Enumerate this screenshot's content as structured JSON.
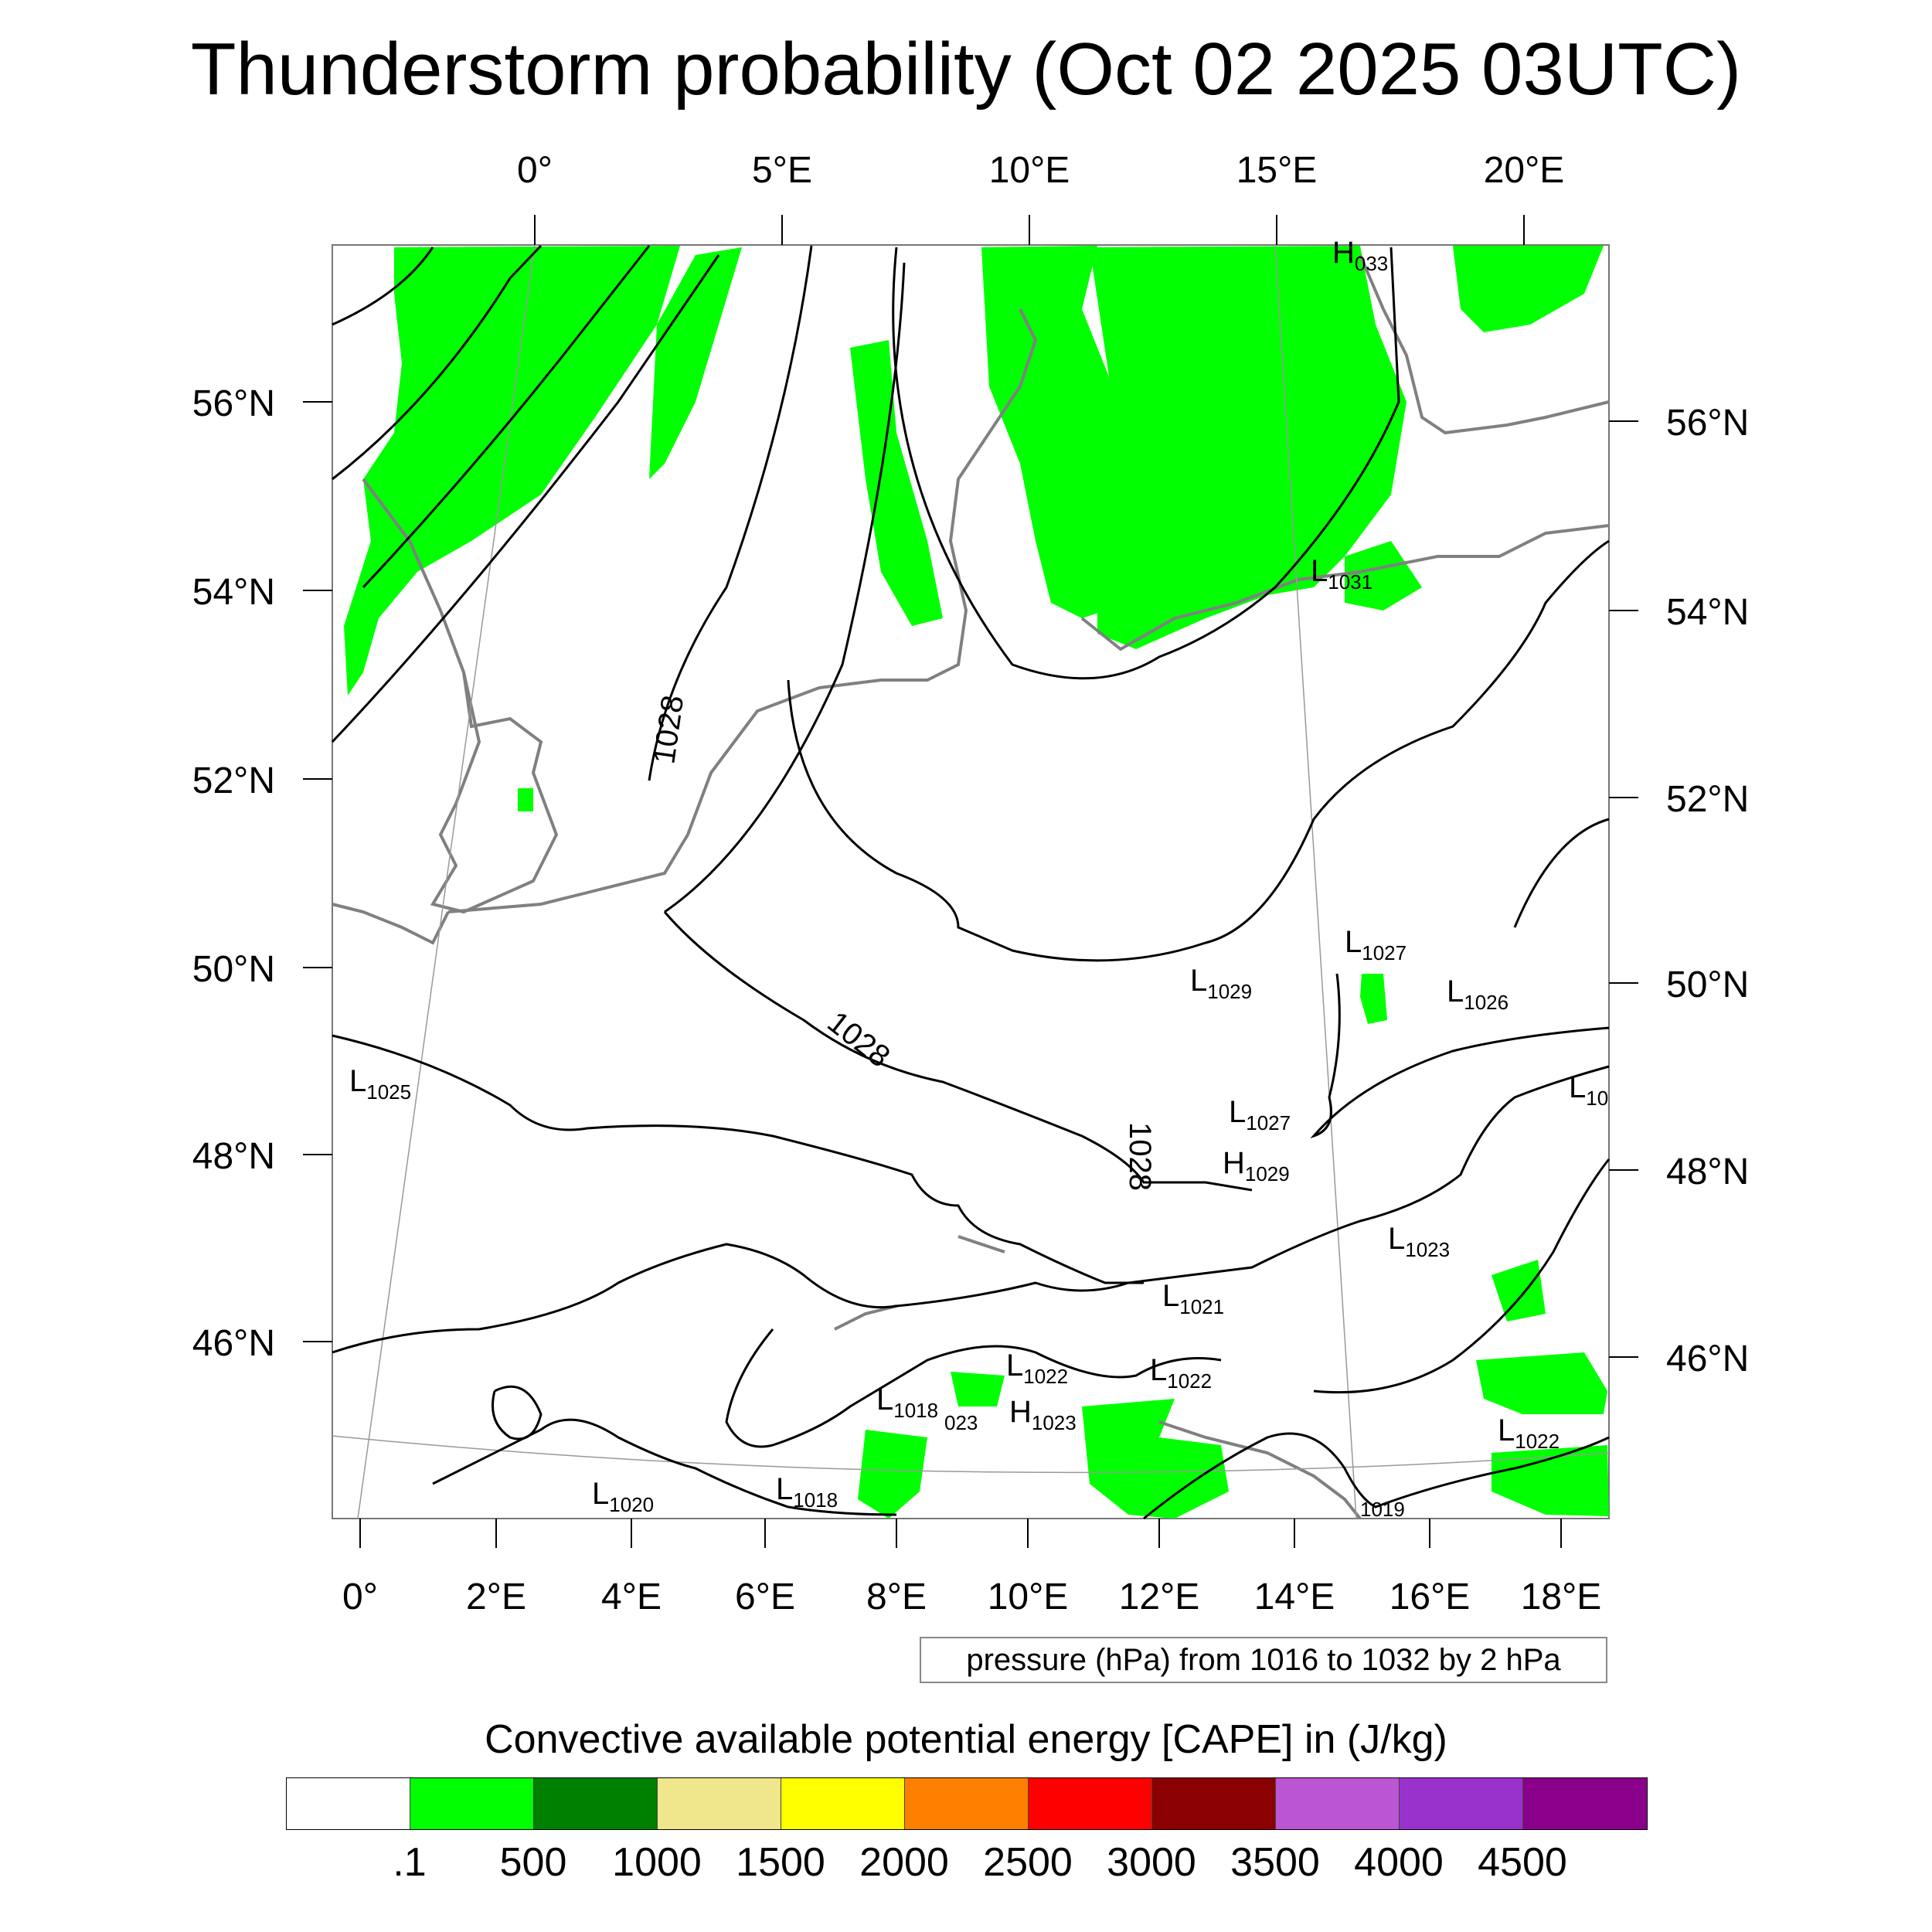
{
  "title": "Thunderstorm probability (Oct 02 2025 03UTC)",
  "top_lon_labels": [
    "0°",
    "5°E",
    "10°E",
    "15°E",
    "20°E"
  ],
  "bottom_lon_labels": [
    "0°",
    "2°E",
    "4°E",
    "6°E",
    "8°E",
    "10°E",
    "12°E",
    "14°E",
    "16°E",
    "18°E"
  ],
  "left_lat_labels": [
    "56°N",
    "54°N",
    "52°N",
    "50°N",
    "48°N",
    "46°N"
  ],
  "right_lat_labels": [
    "56°N",
    "54°N",
    "52°N",
    "50°N",
    "48°N",
    "46°N"
  ],
  "isobar_labels": [
    "1028",
    "1028",
    "1028"
  ],
  "pressure_centers": [
    {
      "type": "H",
      "value": "033"
    },
    {
      "type": "L",
      "value": "1031"
    },
    {
      "type": "L",
      "value": "1027"
    },
    {
      "type": "L",
      "value": "1029"
    },
    {
      "type": "L",
      "value": "1026"
    },
    {
      "type": "L",
      "value": "1025"
    },
    {
      "type": "L",
      "value": "10"
    },
    {
      "type": "L",
      "value": "1027"
    },
    {
      "type": "H",
      "value": "1029"
    },
    {
      "type": "L",
      "value": "1023"
    },
    {
      "type": "L",
      "value": "1021"
    },
    {
      "type": "L",
      "value": "1022"
    },
    {
      "type": "L",
      "value": "1022"
    },
    {
      "type": "L",
      "value": "1018"
    },
    {
      "type": "",
      "value": "023"
    },
    {
      "type": "H",
      "value": "1023"
    },
    {
      "type": "L",
      "value": "1022"
    },
    {
      "type": "L",
      "value": "1020"
    },
    {
      "type": "L",
      "value": "1018"
    },
    {
      "type": "",
      "value": "1019"
    }
  ],
  "pressure_note": "pressure (hPa) from 1016 to 1032 by 2 hPa",
  "colorbar": {
    "title": "Convective available potential energy [CAPE] in (J/kg)",
    "colors": [
      "#ffffff",
      "#00ff00",
      "#008000",
      "#f0e68c",
      "#ffff00",
      "#ff8000",
      "#ff0000",
      "#8b0000",
      "#ba55d3",
      "#9932cc",
      "#8b008b"
    ],
    "labels": [
      ".1",
      "500",
      "1000",
      "1500",
      "2000",
      "2500",
      "3000",
      "3500",
      "4000",
      "4500"
    ]
  },
  "colors": {
    "isobar": "#000000",
    "coastline": "#808080",
    "cape_low": "#00ff00"
  }
}
